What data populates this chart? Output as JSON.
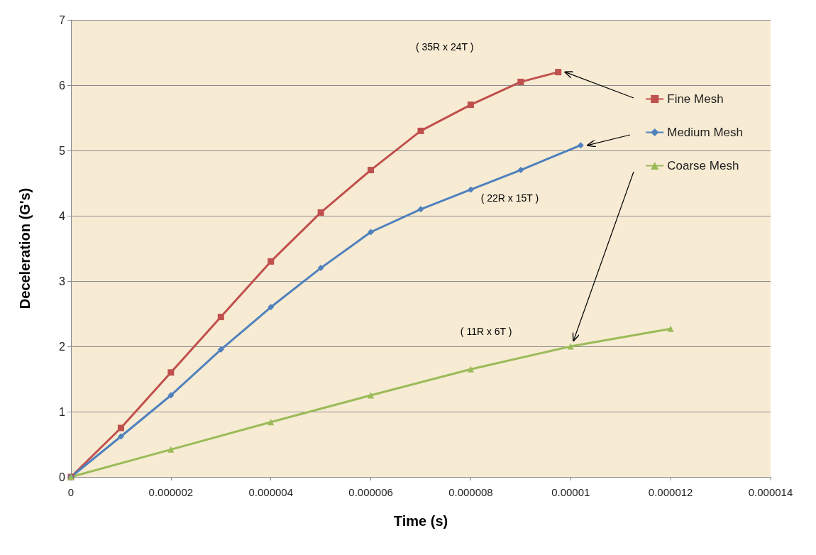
{
  "chart_data": {
    "type": "line",
    "xlabel": "Time (s)",
    "ylabel": "Deceleration (G's)",
    "xlim": [
      0,
      1.4e-05
    ],
    "xticks": [
      0,
      {
        "value": 2e-06,
        "label": "0.000002"
      },
      {
        "value": 4e-06,
        "label": "0.000004"
      },
      {
        "value": 6e-06,
        "label": "0.000006"
      },
      {
        "value": 8e-06,
        "label": "0.000008"
      },
      {
        "value": 1e-05,
        "label": "0.00001"
      },
      {
        "value": 1.2e-05,
        "label": "0.000012"
      },
      {
        "value": 1.4e-05,
        "label": "0.000014"
      }
    ],
    "ylim": [
      0,
      7
    ],
    "yticks": [
      0,
      1,
      2,
      3,
      4,
      5,
      6,
      7
    ],
    "grid": "y",
    "legend": "top right",
    "series": [
      {
        "name": "Fine Mesh",
        "color": "#c0504d",
        "marker": "square",
        "x": [
          0,
          1e-06,
          2e-06,
          3e-06,
          4e-06,
          5e-06,
          6e-06,
          7e-06,
          8e-06,
          9e-06,
          9.75e-06
        ],
        "values": [
          0,
          0.75,
          1.6,
          2.45,
          3.3,
          4.05,
          4.7,
          5.3,
          5.7,
          6.05,
          6.2
        ]
      },
      {
        "name": "Medium Mesh",
        "color": "#4f81bd",
        "marker": "diamond",
        "x": [
          0,
          1e-06,
          2e-06,
          3e-06,
          4e-06,
          5e-06,
          6e-06,
          7e-06,
          8e-06,
          9e-06,
          1.02e-05
        ],
        "values": [
          0,
          0.62,
          1.25,
          1.95,
          2.6,
          3.2,
          3.75,
          4.1,
          4.4,
          4.7,
          5.08
        ]
      },
      {
        "name": "Coarse Mesh",
        "color": "#9bbb59",
        "marker": "triangle",
        "x": [
          0,
          2e-06,
          4e-06,
          6e-06,
          8e-06,
          1e-05,
          1.2e-05
        ],
        "values": [
          0,
          0.42,
          0.84,
          1.25,
          1.65,
          2.0,
          2.27
        ]
      }
    ],
    "annotations": [
      "( 35R x 24T )",
      "( 22R x 15T )",
      "( 11R x 6T )"
    ]
  }
}
